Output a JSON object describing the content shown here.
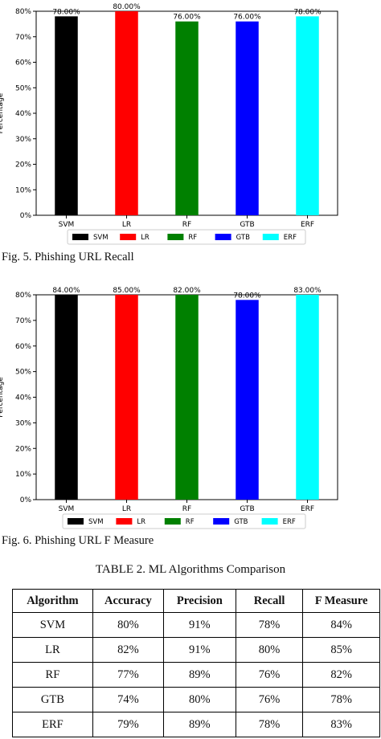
{
  "chart_data": [
    {
      "type": "bar",
      "categories": [
        "SVM",
        "LR",
        "RF",
        "GTB",
        "ERF"
      ],
      "values": [
        78,
        80,
        76,
        76,
        78
      ],
      "value_labels": [
        "78.00%",
        "80.00%",
        "76.00%",
        "76.00%",
        "78.00%"
      ],
      "colors": [
        "#000000",
        "#ff0000",
        "#008000",
        "#0000ff",
        "#00ffff"
      ],
      "ylabel": "Percentage",
      "ylim": [
        0,
        80
      ],
      "yticks": [
        0,
        10,
        20,
        30,
        40,
        50,
        60,
        70,
        80
      ],
      "ytick_labels": [
        "0%",
        "10%",
        "20%",
        "30%",
        "40%",
        "50%",
        "60%",
        "70%",
        "80%"
      ],
      "legend": [
        "SVM",
        "LR",
        "RF",
        "GTB",
        "ERF"
      ],
      "legend_position": "bottom",
      "grid": false
    },
    {
      "type": "bar",
      "categories": [
        "SVM",
        "LR",
        "RF",
        "GTB",
        "ERF"
      ],
      "values": [
        84,
        85,
        82,
        78,
        83
      ],
      "value_labels": [
        "84.00%",
        "85.00%",
        "82.00%",
        "78.00%",
        "83.00%"
      ],
      "colors": [
        "#000000",
        "#ff0000",
        "#008000",
        "#0000ff",
        "#00ffff"
      ],
      "ylabel": "Percentage",
      "ylim": [
        0,
        80
      ],
      "yticks": [
        0,
        10,
        20,
        30,
        40,
        50,
        60,
        70,
        80
      ],
      "ytick_labels": [
        "0%",
        "10%",
        "20%",
        "30%",
        "40%",
        "50%",
        "60%",
        "70%",
        "80%"
      ],
      "legend": [
        "SVM",
        "LR",
        "RF",
        "GTB",
        "ERF"
      ],
      "legend_position": "bottom",
      "grid": false
    }
  ],
  "captions": {
    "fig5": "Fig. 5. Phishing URL Recall",
    "fig6": "Fig. 6. Phishing URL F Measure"
  },
  "table": {
    "title": "TABLE 2. ML Algorithms Comparison",
    "headers": [
      "Algorithm",
      "Accuracy",
      "Precision",
      "Recall",
      "F Measure"
    ],
    "rows": [
      [
        "SVM",
        "80%",
        "91%",
        "78%",
        "84%"
      ],
      [
        "LR",
        "82%",
        "91%",
        "80%",
        "85%"
      ],
      [
        "RF",
        "77%",
        "89%",
        "76%",
        "82%"
      ],
      [
        "GTB",
        "74%",
        "80%",
        "76%",
        "78%"
      ],
      [
        "ERF",
        "79%",
        "89%",
        "78%",
        "83%"
      ]
    ]
  }
}
